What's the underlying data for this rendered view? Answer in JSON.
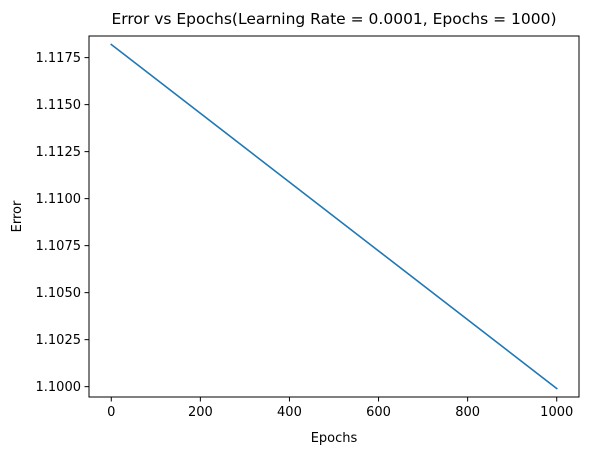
{
  "chart_data": {
    "type": "line",
    "title": "Error vs Epochs(Learning Rate = 0.0001, Epochs = 1000)",
    "xlabel": "Epochs",
    "ylabel": "Error",
    "xlim": [
      -50,
      1050
    ],
    "ylim": [
      1.09945,
      1.11865
    ],
    "xticks": [
      0,
      200,
      400,
      600,
      800,
      1000
    ],
    "xtick_labels": [
      "0",
      "200",
      "400",
      "600",
      "800",
      "1000"
    ],
    "yticks": [
      1.1,
      1.1025,
      1.105,
      1.1075,
      1.11,
      1.1125,
      1.115,
      1.1175
    ],
    "ytick_labels": [
      "1.1000",
      "1.1025",
      "1.1050",
      "1.1075",
      "1.1100",
      "1.1125",
      "1.1150",
      "1.1175"
    ],
    "grid": false,
    "series": [
      {
        "color": "#1f77b4",
        "x": [
          0,
          1000
        ],
        "y": [
          1.1182,
          1.0999
        ]
      }
    ]
  }
}
